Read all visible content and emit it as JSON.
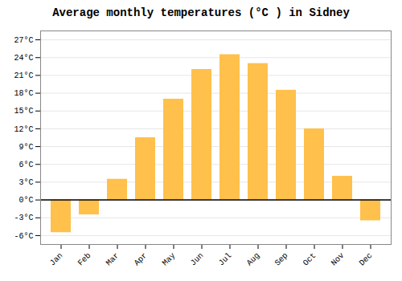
{
  "chart_data": {
    "type": "bar",
    "title": "Average monthly temperatures (°C ) in Sidney",
    "categories": [
      "Jan",
      "Feb",
      "Mar",
      "Apr",
      "May",
      "Jun",
      "Jul",
      "Aug",
      "Sep",
      "Oct",
      "Nov",
      "Dec"
    ],
    "values": [
      -5.5,
      -2.5,
      3.5,
      10.5,
      17.0,
      22.0,
      24.5,
      23.0,
      18.5,
      12.0,
      4.0,
      -3.5
    ],
    "color": "#FFC04C",
    "ylim": [
      -7.5,
      28.5
    ],
    "yticks": [
      {
        "value": -6,
        "label": "-6°C"
      },
      {
        "value": -3,
        "label": "-3°C"
      },
      {
        "value": 0,
        "label": "0°C"
      },
      {
        "value": 3,
        "label": "3°C"
      },
      {
        "value": 6,
        "label": "6°C"
      },
      {
        "value": 9,
        "label": "9°C"
      },
      {
        "value": 12,
        "label": "12°C"
      },
      {
        "value": 15,
        "label": "15°C"
      },
      {
        "value": 18,
        "label": "18°C"
      },
      {
        "value": 21,
        "label": "21°C"
      },
      {
        "value": 24,
        "label": "24°C"
      },
      {
        "value": 27,
        "label": "27°C"
      }
    ],
    "grid": true
  }
}
